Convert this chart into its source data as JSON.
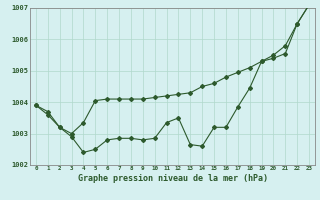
{
  "xlabel": "Graphe pression niveau de la mer (hPa)",
  "background_color": "#d6f0f0",
  "grid_color": "#b0d8cc",
  "line_color": "#2d5a2d",
  "x": [
    0,
    1,
    2,
    3,
    4,
    5,
    6,
    7,
    8,
    9,
    10,
    11,
    12,
    13,
    14,
    15,
    16,
    17,
    18,
    19,
    20,
    21,
    22,
    23
  ],
  "series1": [
    1003.9,
    1003.7,
    1003.2,
    1002.9,
    1002.4,
    1002.5,
    1002.8,
    1002.85,
    1002.85,
    1002.8,
    1002.85,
    1003.35,
    1003.5,
    1002.65,
    1002.6,
    1003.2,
    1003.2,
    1003.85,
    1004.45,
    1005.3,
    1005.5,
    1005.8,
    1006.5,
    1007.1
  ],
  "series2": [
    1003.9,
    1003.6,
    1003.2,
    1003.0,
    1003.35,
    1004.05,
    1004.1,
    1004.1,
    1004.1,
    1004.1,
    1004.15,
    1004.2,
    1004.25,
    1004.3,
    1004.5,
    1004.6,
    1004.8,
    1004.95,
    1005.1,
    1005.3,
    1005.4,
    1005.55,
    1006.5,
    1007.1
  ],
  "ylim": [
    1002.0,
    1007.0
  ],
  "yticks": [
    1002,
    1003,
    1004,
    1005,
    1006,
    1007
  ],
  "xticks": [
    0,
    1,
    2,
    3,
    4,
    5,
    6,
    7,
    8,
    9,
    10,
    11,
    12,
    13,
    14,
    15,
    16,
    17,
    18,
    19,
    20,
    21,
    22,
    23
  ]
}
